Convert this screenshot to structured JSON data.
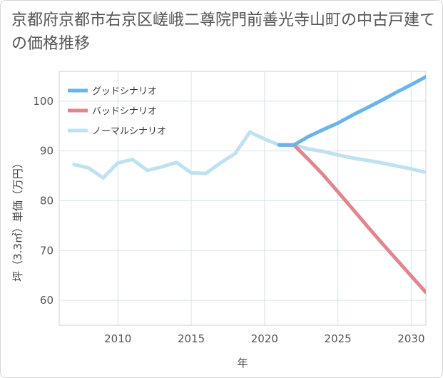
{
  "chart_data": {
    "type": "line",
    "title": "京都府京都市右京区嵯峨二尊院門前善光寺山町の中古戸建ての価格推移",
    "xlabel": "年",
    "ylabel": "坪（3.3㎡）単価（万円）",
    "xlim": [
      2006,
      2031
    ],
    "ylim": [
      55,
      106
    ],
    "xticks": [
      2010,
      2015,
      2020,
      2025,
      2030
    ],
    "yticks": [
      60,
      70,
      80,
      90,
      100
    ],
    "grid": true,
    "legend_position": "top-left",
    "series": [
      {
        "name": "グッドシナリオ",
        "color": "#6ab4ec",
        "x": [
          2021,
          2022,
          2023,
          2024,
          2025,
          2026,
          2027,
          2028,
          2029,
          2030,
          2031
        ],
        "y": [
          91.2,
          91.2,
          92.9,
          94.3,
          95.6,
          97.2,
          98.7,
          100.2,
          101.8,
          103.3,
          104.9
        ]
      },
      {
        "name": "バッドシナリオ",
        "color": "#e0868f",
        "x": [
          2021,
          2022,
          2023,
          2024,
          2025,
          2026,
          2027,
          2028,
          2029,
          2030,
          2031
        ],
        "y": [
          91.2,
          91.2,
          88.3,
          85.2,
          81.8,
          78.4,
          74.9,
          71.5,
          68.2,
          64.9,
          61.6
        ]
      },
      {
        "name": "ノーマルシナリオ",
        "color": "#bfe1f0",
        "x": [
          2007,
          2008,
          2009,
          2010,
          2011,
          2012,
          2013,
          2014,
          2015,
          2016,
          2017,
          2018,
          2019,
          2020,
          2021,
          2022,
          2023,
          2024,
          2025,
          2026,
          2027,
          2028,
          2029,
          2030,
          2031
        ],
        "y": [
          87.3,
          86.6,
          84.6,
          87.6,
          88.3,
          86.1,
          86.8,
          87.7,
          85.6,
          85.5,
          87.6,
          89.5,
          93.8,
          92.4,
          91.2,
          91.2,
          90.4,
          89.9,
          89.2,
          88.6,
          88.1,
          87.6,
          87.0,
          86.4,
          85.7
        ]
      }
    ]
  }
}
